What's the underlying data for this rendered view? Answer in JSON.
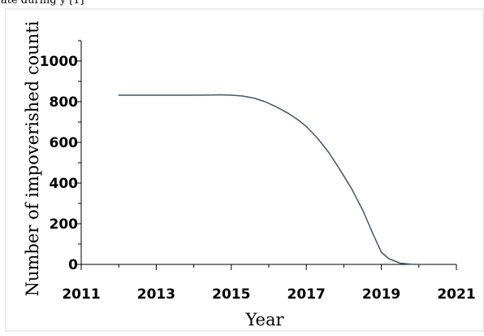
{
  "caption": "ate during y [1]",
  "chart_data": {
    "type": "line",
    "title": "",
    "xlabel": "Year",
    "ylabel": "Number of impoverished counti",
    "xlim": [
      2011,
      2021
    ],
    "ylim": [
      0,
      1000
    ],
    "x_ticks": [
      2011,
      2013,
      2015,
      2017,
      2019,
      2021
    ],
    "y_ticks": [
      0,
      200,
      400,
      600,
      800,
      1000
    ],
    "x_tick_labels": [
      "2011",
      "2013",
      "2015",
      "2017",
      "2019",
      "2021"
    ],
    "y_tick_labels": [
      "0",
      "200",
      "400",
      "600",
      "800",
      "1000"
    ],
    "grid": false,
    "line_color": "#44546a",
    "series": [
      {
        "x": [
          2012,
          2012.5,
          2013,
          2013.5,
          2014,
          2014.5,
          2014.7,
          2015,
          2015.3,
          2015.6,
          2015.9,
          2016.2,
          2016.5,
          2016.8,
          2017.0,
          2017.3,
          2017.6,
          2017.9,
          2018.2,
          2018.5,
          2018.8,
          2019.0,
          2019.2,
          2019.5,
          2019.8,
          2020
        ],
        "y": [
          832,
          832,
          832,
          832,
          832,
          833,
          834,
          832,
          828,
          818,
          800,
          775,
          745,
          708,
          678,
          620,
          550,
          465,
          375,
          268,
          140,
          60,
          28,
          6,
          1,
          0
        ]
      }
    ]
  }
}
